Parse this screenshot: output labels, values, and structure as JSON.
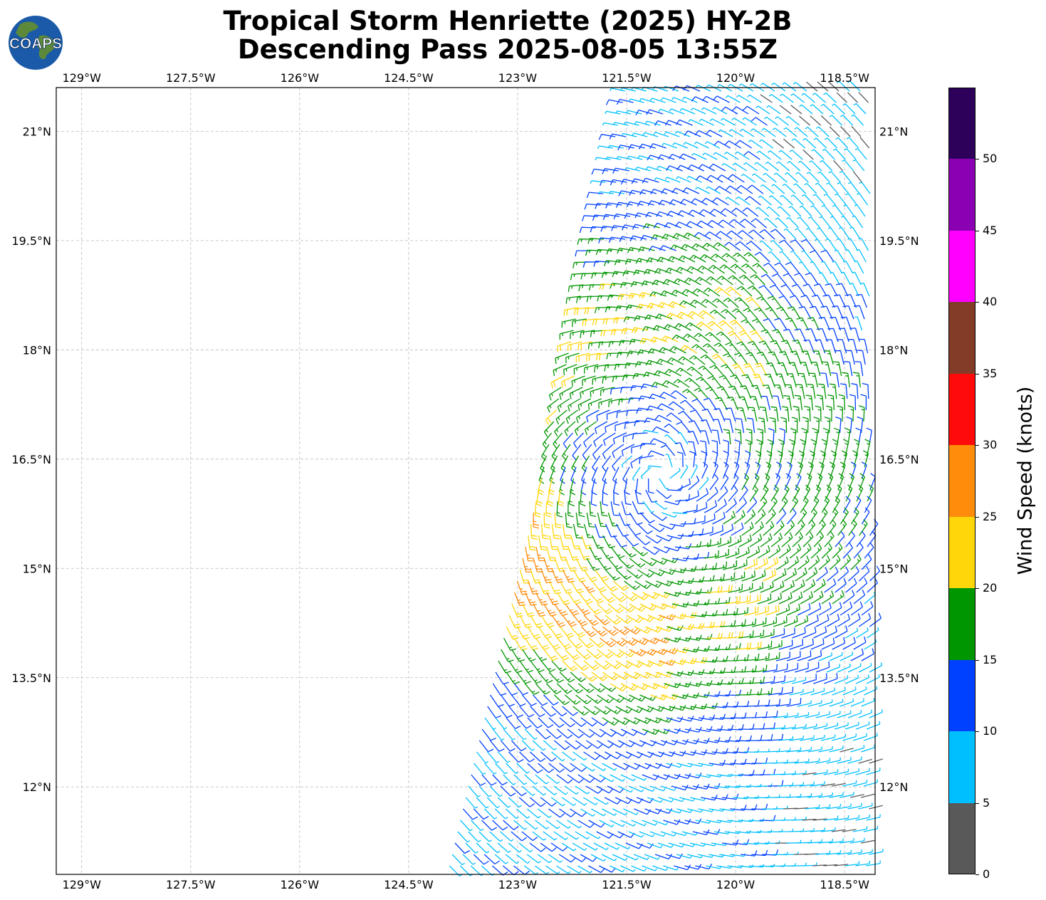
{
  "title": {
    "line1": "Tropical Storm Henriette (2025) HY-2B",
    "line2": "Descending Pass 2025-08-05 13:55Z"
  },
  "logo": {
    "text": "COAPS",
    "ocean_color": "#1a5aa8",
    "land_color": "#5c8a3a"
  },
  "map": {
    "lon_range": [
      -129.35,
      -118.08
    ],
    "lat_range": [
      10.8,
      21.6
    ],
    "lon_ticks": [
      -129,
      -127.5,
      -126,
      -124.5,
      -123,
      -121.5,
      -120,
      -118.5
    ],
    "lat_ticks": [
      12,
      13.5,
      15,
      16.5,
      18,
      19.5,
      21
    ],
    "lon_tick_labels": [
      "129°W",
      "127.5°W",
      "126°W",
      "124.5°W",
      "123°W",
      "121.5°W",
      "120°W",
      "118.5°W"
    ],
    "lat_tick_labels": [
      "12°N",
      "13.5°N",
      "15°N",
      "16.5°N",
      "18°N",
      "19.5°N",
      "21°N"
    ],
    "grid": true,
    "storm_center": {
      "lon": -121.0,
      "lat": 16.3
    }
  },
  "colorbar": {
    "label": "Wind Speed (knots)",
    "ticks": [
      "0",
      "5",
      "10",
      "15",
      "20",
      "25",
      "30",
      "35",
      "40",
      "45",
      "50"
    ],
    "bins": [
      {
        "min": 0,
        "max": 5,
        "color": "#595959"
      },
      {
        "min": 5,
        "max": 10,
        "color": "#00bfff"
      },
      {
        "min": 10,
        "max": 15,
        "color": "#0040ff"
      },
      {
        "min": 15,
        "max": 20,
        "color": "#009600"
      },
      {
        "min": 20,
        "max": 25,
        "color": "#ffd60a"
      },
      {
        "min": 25,
        "max": 30,
        "color": "#ff8c0a"
      },
      {
        "min": 30,
        "max": 35,
        "color": "#ff0a0a"
      },
      {
        "min": 35,
        "max": 40,
        "color": "#823c28"
      },
      {
        "min": 40,
        "max": 45,
        "color": "#ff00ff"
      },
      {
        "min": 45,
        "max": 50,
        "color": "#8c00b4"
      },
      {
        "min": 50,
        "max": 55,
        "color": "#2d0059"
      }
    ]
  }
}
